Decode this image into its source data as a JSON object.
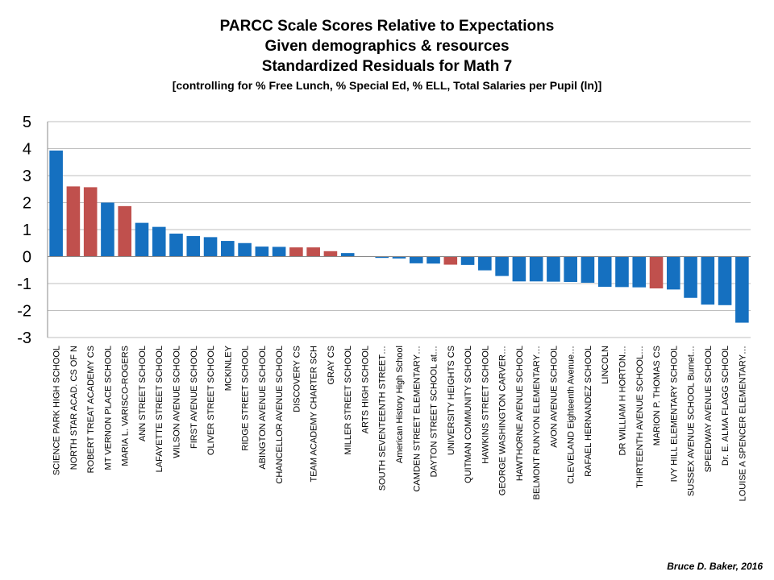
{
  "chart_data": {
    "type": "bar",
    "title": "PARCC Scale Scores Relative to Expectations",
    "title_lines": [
      "PARCC Scale Scores Relative to Expectations",
      "Given demographics & resources",
      "Standardized Residuals for Math 7"
    ],
    "subtitle": "[controlling for % Free Lunch, % Special Ed, % ELL, Total Salaries per Pupil (ln)]",
    "xlabel": "",
    "ylabel": "",
    "ylim": [
      -3,
      5
    ],
    "yticks": [
      5,
      4,
      3,
      2,
      1,
      0,
      -1,
      -2,
      -3
    ],
    "grid": true,
    "colors": {
      "public": "#1570C0",
      "charter": "#C0504D"
    },
    "categories": [
      "SCIENCE PARK HIGH SCHOOL",
      "NORTH STAR ACAD. CS OF N",
      "ROBERT TREAT ACADEMY CS",
      "MT VERNON PLACE SCHOOL",
      "MARIA L. VARISCO-ROGERS",
      "ANN STREET SCHOOL",
      "LAFAYETTE STREET SCHOOL",
      "WILSON AVENUE SCHOOL",
      "FIRST AVENUE SCHOOL",
      "OLIVER STREET SCHOOL",
      "MCKINLEY",
      "RIDGE STREET SCHOOL",
      "ABINGTON AVENUE SCHOOL",
      "CHANCELLOR AVENUE SCHOOL",
      "DISCOVERY CS",
      "TEAM ACADEMY CHARTER SCH",
      "GRAY CS",
      "MILLER STREET SCHOOL",
      "ARTS HIGH SCHOOL",
      "SOUTH SEVENTEENTH STREET…",
      "American History High School",
      "CAMDEN STREET ELEMENTARY…",
      "DAYTON STREET SCHOOL at…",
      "UNIVERSITY HEIGHTS CS",
      "QUITMAN COMMUNITY SCHOOL",
      "HAWKINS STREET SCHOOL",
      "GEORGE WASHINGTON CARVER…",
      "HAWTHORNE AVENUE SCHOOL",
      "BELMONT RUNYON ELEMENTARY…",
      "AVON AVENUE SCHOOL",
      "CLEVELAND Eighteenth Avenue…",
      "RAFAEL HERNANDEZ SCHOOL",
      "LINCOLN",
      "DR WILLIAM H HORTON…",
      "THIRTEENTH AVENUE SCHOOL…",
      "MARION P. THOMAS CS",
      "IVY HILL ELEMENTARY SCHOOL",
      "SUSSEX AVENUE SCHOOL Burnet…",
      "SPEEDWAY AVENUE SCHOOL",
      "Dr. E. ALMA FLAGG SCHOOL",
      "LOUISE A SPENCER ELEMENTARY…"
    ],
    "values": [
      3.93,
      2.6,
      2.57,
      2.0,
      1.87,
      1.25,
      1.1,
      0.85,
      0.76,
      0.72,
      0.58,
      0.5,
      0.37,
      0.36,
      0.34,
      0.34,
      0.2,
      0.13,
      0.0,
      -0.05,
      -0.07,
      -0.25,
      -0.26,
      -0.3,
      -0.31,
      -0.51,
      -0.72,
      -0.92,
      -0.92,
      -0.93,
      -0.94,
      -0.97,
      -1.12,
      -1.13,
      -1.14,
      -1.18,
      -1.22,
      -1.53,
      -1.78,
      -1.8,
      -2.45
    ],
    "charter": [
      false,
      true,
      true,
      false,
      true,
      false,
      false,
      false,
      false,
      false,
      false,
      false,
      false,
      false,
      true,
      true,
      true,
      false,
      false,
      false,
      false,
      false,
      false,
      true,
      false,
      false,
      false,
      false,
      false,
      false,
      false,
      false,
      false,
      false,
      false,
      true,
      false,
      false,
      false,
      false,
      false
    ]
  },
  "credit": "Bruce D. Baker, 2016"
}
